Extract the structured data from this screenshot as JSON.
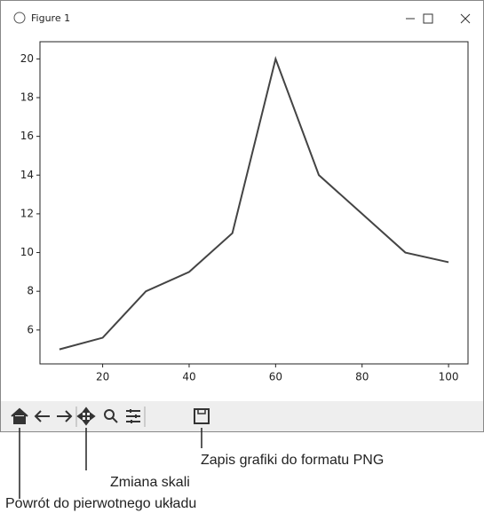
{
  "window": {
    "title": "Figure 1"
  },
  "chart_data": {
    "type": "line",
    "x": [
      10,
      20,
      30,
      40,
      50,
      60,
      70,
      80,
      90,
      100
    ],
    "values": [
      5,
      5.6,
      8,
      9,
      11,
      20,
      14,
      12,
      10,
      9.5
    ],
    "color": "#444444",
    "xlim": [
      5.5,
      104.5
    ],
    "xticks": [
      20,
      40,
      60,
      80,
      100
    ],
    "ylim": [
      4.25,
      20.75
    ],
    "yticks": [
      6,
      8,
      10,
      12,
      14,
      16,
      18,
      20
    ]
  },
  "annotations": [
    "Zapis grafiki do formatu PNG",
    "Zmiana skali",
    "Powrót do pierwotnego układu"
  ]
}
